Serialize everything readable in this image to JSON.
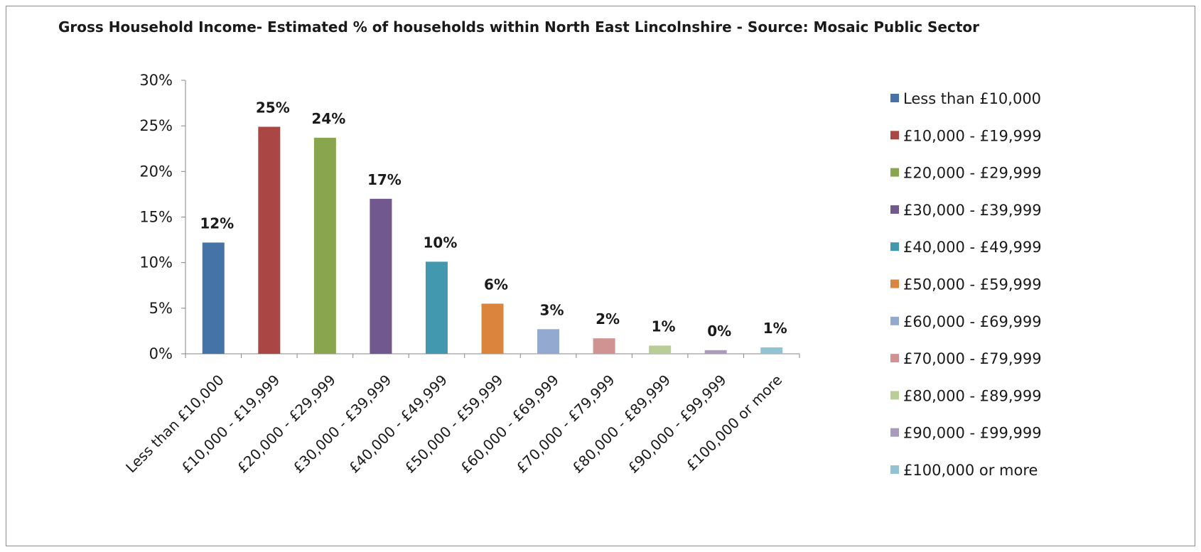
{
  "chart_data": {
    "type": "bar",
    "title": "Gross Household Income- Estimated % of households within North East Lincolnshire - Source: Mosaic Public Sector",
    "xlabel": "",
    "ylabel": "",
    "ylim": [
      0,
      30
    ],
    "yticks": [
      "0%",
      "5%",
      "10%",
      "15%",
      "20%",
      "25%",
      "30%"
    ],
    "grid": false,
    "legend_position": "right",
    "categories": [
      "Less than £10,000",
      "£10,000 - £19,999",
      "£20,000 - £29,999",
      "£30,000 - £39,999",
      "£40,000 - £49,999",
      "£50,000 - £59,999",
      "£60,000 - £69,999",
      "£70,000 - £79,999",
      "£80,000 - £89,999",
      "£90,000 - £99,999",
      "£100,000 or more"
    ],
    "values": [
      12.2,
      24.9,
      23.7,
      17.0,
      10.1,
      5.5,
      2.7,
      1.7,
      0.9,
      0.4,
      0.7
    ],
    "data_labels": [
      "12%",
      "25%",
      "24%",
      "17%",
      "10%",
      "6%",
      "3%",
      "2%",
      "1%",
      "0%",
      "1%"
    ],
    "colors": [
      "#4572a7",
      "#aa4643",
      "#89a54e",
      "#71588f",
      "#4198af",
      "#db843d",
      "#93a9cf",
      "#d19392",
      "#b9cd96",
      "#a99bbd",
      "#92c3d4"
    ]
  }
}
